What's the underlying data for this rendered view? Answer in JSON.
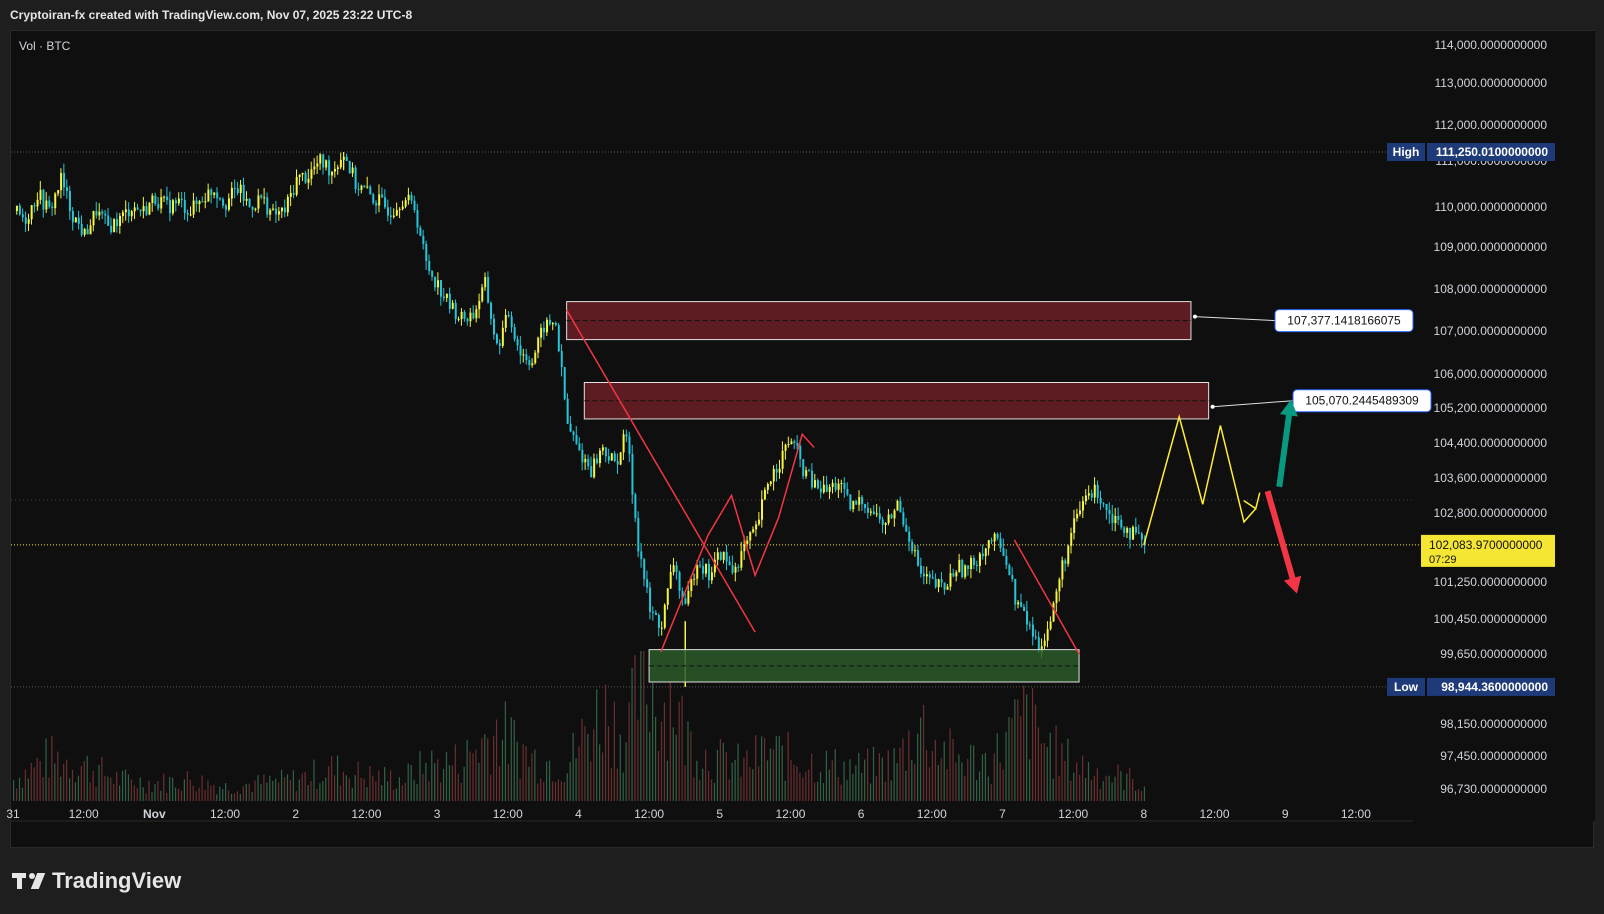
{
  "header": {
    "title": "Cryptoiran-fx created with TradingView.com, Nov 07, 2025 23:22 UTC-8"
  },
  "legend": {
    "indicator": "Vol · BTC"
  },
  "footer": {
    "brand": "TradingView"
  },
  "colors": {
    "background": "#0f0f0f",
    "up_candle": "#f5f542",
    "down_candle": "#26c6da",
    "supply_zone": "#6b1f24",
    "demand_zone": "#2a5a2a",
    "red_line": "#f23645",
    "yellow_path": "#ffee33",
    "green_arrow": "#089981",
    "red_arrow": "#f23645",
    "high_low_label": "#1e3a78",
    "last_price_label": "#f5e633"
  },
  "chart_data": {
    "type": "candlestick",
    "symbol": "BTC",
    "y_axis": {
      "min": 96400,
      "max": 114300,
      "ticks": [
        {
          "value": 114000,
          "label": "114,000.0000000000"
        },
        {
          "value": 113000,
          "label": "113,000.0000000000"
        },
        {
          "value": 112000,
          "label": "112,000.0000000000"
        },
        {
          "value": 111000,
          "label": "111,000.0000000000"
        },
        {
          "value": 110000,
          "label": "110,000.0000000000"
        },
        {
          "value": 109000,
          "label": "109,000.0000000000"
        },
        {
          "value": 108000,
          "label": "108,000.0000000000"
        },
        {
          "value": 107000,
          "label": "107,000.0000000000"
        },
        {
          "value": 106000,
          "label": "106,000.0000000000"
        },
        {
          "value": 105200,
          "label": "105,200.0000000000"
        },
        {
          "value": 104400,
          "label": "104,400.0000000000"
        },
        {
          "value": 103600,
          "label": "103,600.0000000000"
        },
        {
          "value": 102800,
          "label": "102,800.0000000000"
        },
        {
          "value": 101250,
          "label": "101,250.0000000000"
        },
        {
          "value": 100450,
          "label": "100,450.0000000000"
        },
        {
          "value": 99650,
          "label": "99,650.0000000000"
        },
        {
          "value": 98150,
          "label": "98,150.0000000000"
        },
        {
          "value": 97450,
          "label": "97,450.0000000000"
        },
        {
          "value": 96730,
          "label": "96,730.0000000000"
        }
      ]
    },
    "x_axis": {
      "ticks": [
        {
          "t": 0,
          "label": "31"
        },
        {
          "t": 12,
          "label": "12:00"
        },
        {
          "t": 24,
          "label": "Nov"
        },
        {
          "t": 36,
          "label": "12:00"
        },
        {
          "t": 48,
          "label": "2"
        },
        {
          "t": 60,
          "label": "12:00"
        },
        {
          "t": 72,
          "label": "3"
        },
        {
          "t": 84,
          "label": "12:00"
        },
        {
          "t": 96,
          "label": "4"
        },
        {
          "t": 108,
          "label": "12:00"
        },
        {
          "t": 120,
          "label": "5"
        },
        {
          "t": 132,
          "label": "12:00"
        },
        {
          "t": 144,
          "label": "6"
        },
        {
          "t": 156,
          "label": "12:00"
        },
        {
          "t": 168,
          "label": "7"
        },
        {
          "t": 180,
          "label": "12:00"
        },
        {
          "t": 192,
          "label": "8"
        },
        {
          "t": 204,
          "label": "12:00"
        },
        {
          "t": 216,
          "label": "9"
        },
        {
          "t": 228,
          "label": "12:00"
        }
      ]
    },
    "high": {
      "tag": "High",
      "value": 111250.01,
      "label": "111,250.0100000000"
    },
    "low": {
      "tag": "Low",
      "value": 98944.36,
      "label": "98,944.3600000000"
    },
    "last": {
      "value": 102083.97,
      "label": "102,083.9700000000",
      "countdown": "07:29"
    },
    "price_path": [
      [
        0,
        109900
      ],
      [
        2,
        109700
      ],
      [
        4,
        110300
      ],
      [
        6,
        109900
      ],
      [
        8,
        110600
      ],
      [
        10,
        109800
      ],
      [
        12,
        109300
      ],
      [
        14,
        109900
      ],
      [
        16,
        109500
      ],
      [
        18,
        109700
      ],
      [
        20,
        110000
      ],
      [
        22,
        109900
      ],
      [
        24,
        110200
      ],
      [
        26,
        110000
      ],
      [
        28,
        110100
      ],
      [
        30,
        109900
      ],
      [
        32,
        110200
      ],
      [
        34,
        110400
      ],
      [
        36,
        110100
      ],
      [
        38,
        110400
      ],
      [
        40,
        110000
      ],
      [
        42,
        110200
      ],
      [
        44,
        109800
      ],
      [
        46,
        109900
      ],
      [
        48,
        110600
      ],
      [
        50,
        110700
      ],
      [
        52,
        111000
      ],
      [
        54,
        110800
      ],
      [
        56,
        111200
      ],
      [
        58,
        110500
      ],
      [
        60,
        110300
      ],
      [
        62,
        110100
      ],
      [
        64,
        109900
      ],
      [
        66,
        110200
      ],
      [
        68,
        110000
      ],
      [
        70,
        108600
      ],
      [
        72,
        108100
      ],
      [
        74,
        107600
      ],
      [
        76,
        107300
      ],
      [
        78,
        107400
      ],
      [
        80,
        108100
      ],
      [
        82,
        106600
      ],
      [
        84,
        107400
      ],
      [
        86,
        106500
      ],
      [
        88,
        106300
      ],
      [
        90,
        107100
      ],
      [
        92,
        107200
      ],
      [
        94,
        104800
      ],
      [
        96,
        104200
      ],
      [
        98,
        103800
      ],
      [
        100,
        104300
      ],
      [
        102,
        103900
      ],
      [
        104,
        104600
      ],
      [
        106,
        102100
      ],
      [
        108,
        100600
      ],
      [
        110,
        100300
      ],
      [
        112,
        101700
      ],
      [
        114,
        100600
      ],
      [
        116,
        101800
      ],
      [
        118,
        101400
      ],
      [
        120,
        101900
      ],
      [
        122,
        101500
      ],
      [
        124,
        102000
      ],
      [
        126,
        102400
      ],
      [
        128,
        103500
      ],
      [
        130,
        104000
      ],
      [
        132,
        104500
      ],
      [
        134,
        103800
      ],
      [
        136,
        103400
      ],
      [
        138,
        103300
      ],
      [
        140,
        103500
      ],
      [
        142,
        102900
      ],
      [
        144,
        103100
      ],
      [
        146,
        102800
      ],
      [
        148,
        102500
      ],
      [
        150,
        103000
      ],
      [
        152,
        102300
      ],
      [
        154,
        101400
      ],
      [
        156,
        101200
      ],
      [
        158,
        101100
      ],
      [
        160,
        101600
      ],
      [
        162,
        101500
      ],
      [
        164,
        101900
      ],
      [
        166,
        102200
      ],
      [
        168,
        102000
      ],
      [
        170,
        100900
      ],
      [
        172,
        100400
      ],
      [
        174,
        99800
      ],
      [
        176,
        100400
      ],
      [
        178,
        101600
      ],
      [
        180,
        102500
      ],
      [
        182,
        103200
      ],
      [
        184,
        103300
      ],
      [
        186,
        102800
      ],
      [
        188,
        102600
      ],
      [
        190,
        102300
      ],
      [
        192,
        102084
      ]
    ],
    "volume_path": [
      [
        0,
        0.3
      ],
      [
        6,
        0.6
      ],
      [
        12,
        0.5
      ],
      [
        18,
        0.3
      ],
      [
        24,
        0.25
      ],
      [
        30,
        0.3
      ],
      [
        36,
        0.2
      ],
      [
        42,
        0.25
      ],
      [
        48,
        0.3
      ],
      [
        54,
        0.45
      ],
      [
        60,
        0.35
      ],
      [
        66,
        0.3
      ],
      [
        70,
        0.5
      ],
      [
        76,
        0.55
      ],
      [
        82,
        1.0
      ],
      [
        88,
        0.6
      ],
      [
        94,
        0.5
      ],
      [
        96,
        0.8
      ],
      [
        100,
        1.3
      ],
      [
        104,
        0.9
      ],
      [
        106,
        1.5
      ],
      [
        108,
        1.6
      ],
      [
        110,
        1.3
      ],
      [
        112,
        1.5
      ],
      [
        114,
        0.9
      ],
      [
        118,
        0.6
      ],
      [
        124,
        0.5
      ],
      [
        128,
        0.7
      ],
      [
        132,
        0.6
      ],
      [
        138,
        0.5
      ],
      [
        144,
        0.45
      ],
      [
        150,
        0.55
      ],
      [
        154,
        1.1
      ],
      [
        156,
        0.8
      ],
      [
        160,
        0.6
      ],
      [
        166,
        0.55
      ],
      [
        170,
        1.0
      ],
      [
        172,
        1.2
      ],
      [
        174,
        0.9
      ],
      [
        178,
        0.6
      ],
      [
        184,
        0.4
      ],
      [
        190,
        0.3
      ],
      [
        192,
        0.2
      ]
    ],
    "annotations": {
      "supply_zone_1": {
        "t_start": 94,
        "t_end": 200,
        "top": 107700,
        "bottom": 106800,
        "label": "107,377.1418166075",
        "label_price": 107377.14
      },
      "supply_zone_2": {
        "t_start": 97,
        "t_end": 203,
        "top": 105800,
        "bottom": 104950,
        "label": "105,070.2445489309",
        "label_price": 105070.24
      },
      "demand_zone": {
        "t_start": 108,
        "t_end": 181,
        "top": 99750,
        "bottom": 99050
      },
      "red_lines": [
        [
          [
            94,
            107500
          ],
          [
            126,
            100150
          ]
        ],
        [
          [
            170,
            102200
          ],
          [
            181,
            99650
          ]
        ]
      ],
      "red_zigzag": [
        [
          110,
          99700
        ],
        [
          118,
          102300
        ],
        [
          122,
          103200
        ],
        [
          126,
          101400
        ],
        [
          130,
          102700
        ],
        [
          134,
          104600
        ],
        [
          136,
          104300
        ]
      ],
      "yellow_path": [
        [
          192,
          102084
        ],
        [
          198,
          105000
        ],
        [
          202,
          103000
        ],
        [
          205,
          104800
        ],
        [
          209,
          102600
        ],
        [
          211,
          102900
        ]
      ],
      "green_arrow": {
        "from": [
          215,
          103400
        ],
        "to": [
          217,
          105400
        ]
      },
      "red_arrow": {
        "from": [
          213,
          103300
        ],
        "to": [
          218,
          101000
        ]
      }
    }
  }
}
